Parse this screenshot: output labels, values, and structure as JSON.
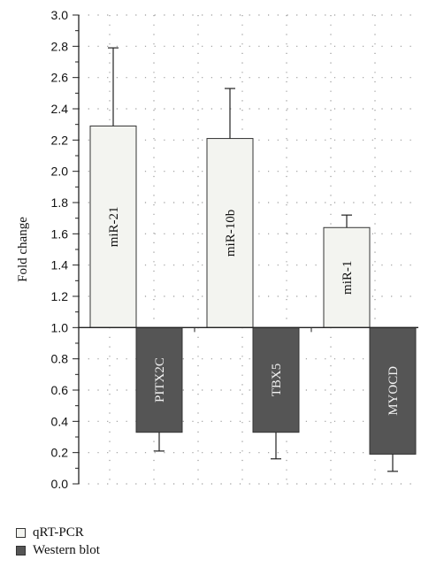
{
  "chart_data": {
    "type": "bar",
    "title": "",
    "xlabel": "",
    "ylabel": "Fold change",
    "ylim": [
      0.0,
      3.0
    ],
    "baseline": 1.0,
    "yticks": [
      "0.0",
      "0.2",
      "0.4",
      "0.6",
      "0.8",
      "1.0",
      "1.2",
      "1.4",
      "1.6",
      "1.8",
      "2.0",
      "2.2",
      "2.4",
      "2.6",
      "2.8",
      "3.0"
    ],
    "grid": true,
    "legend_position": "bottom-left",
    "bars": [
      {
        "label": "miR-21",
        "series": "qRT-PCR",
        "value": 2.29,
        "error": 0.5
      },
      {
        "label": "PITX2C",
        "series": "Western blot",
        "value": 0.33,
        "error": 0.12
      },
      {
        "label": "miR-10b",
        "series": "qRT-PCR",
        "value": 2.21,
        "error": 0.32
      },
      {
        "label": "TBX5",
        "series": "Western blot",
        "value": 0.33,
        "error": 0.17
      },
      {
        "label": "miR-1",
        "series": "qRT-PCR",
        "value": 1.64,
        "error": 0.08
      },
      {
        "label": "MYOCD",
        "series": "Western blot",
        "value": 0.19,
        "error": 0.11
      }
    ],
    "series": [
      {
        "name": "qRT-PCR",
        "color": "#f3f4f0"
      },
      {
        "name": "Western blot",
        "color": "#555555"
      }
    ]
  }
}
